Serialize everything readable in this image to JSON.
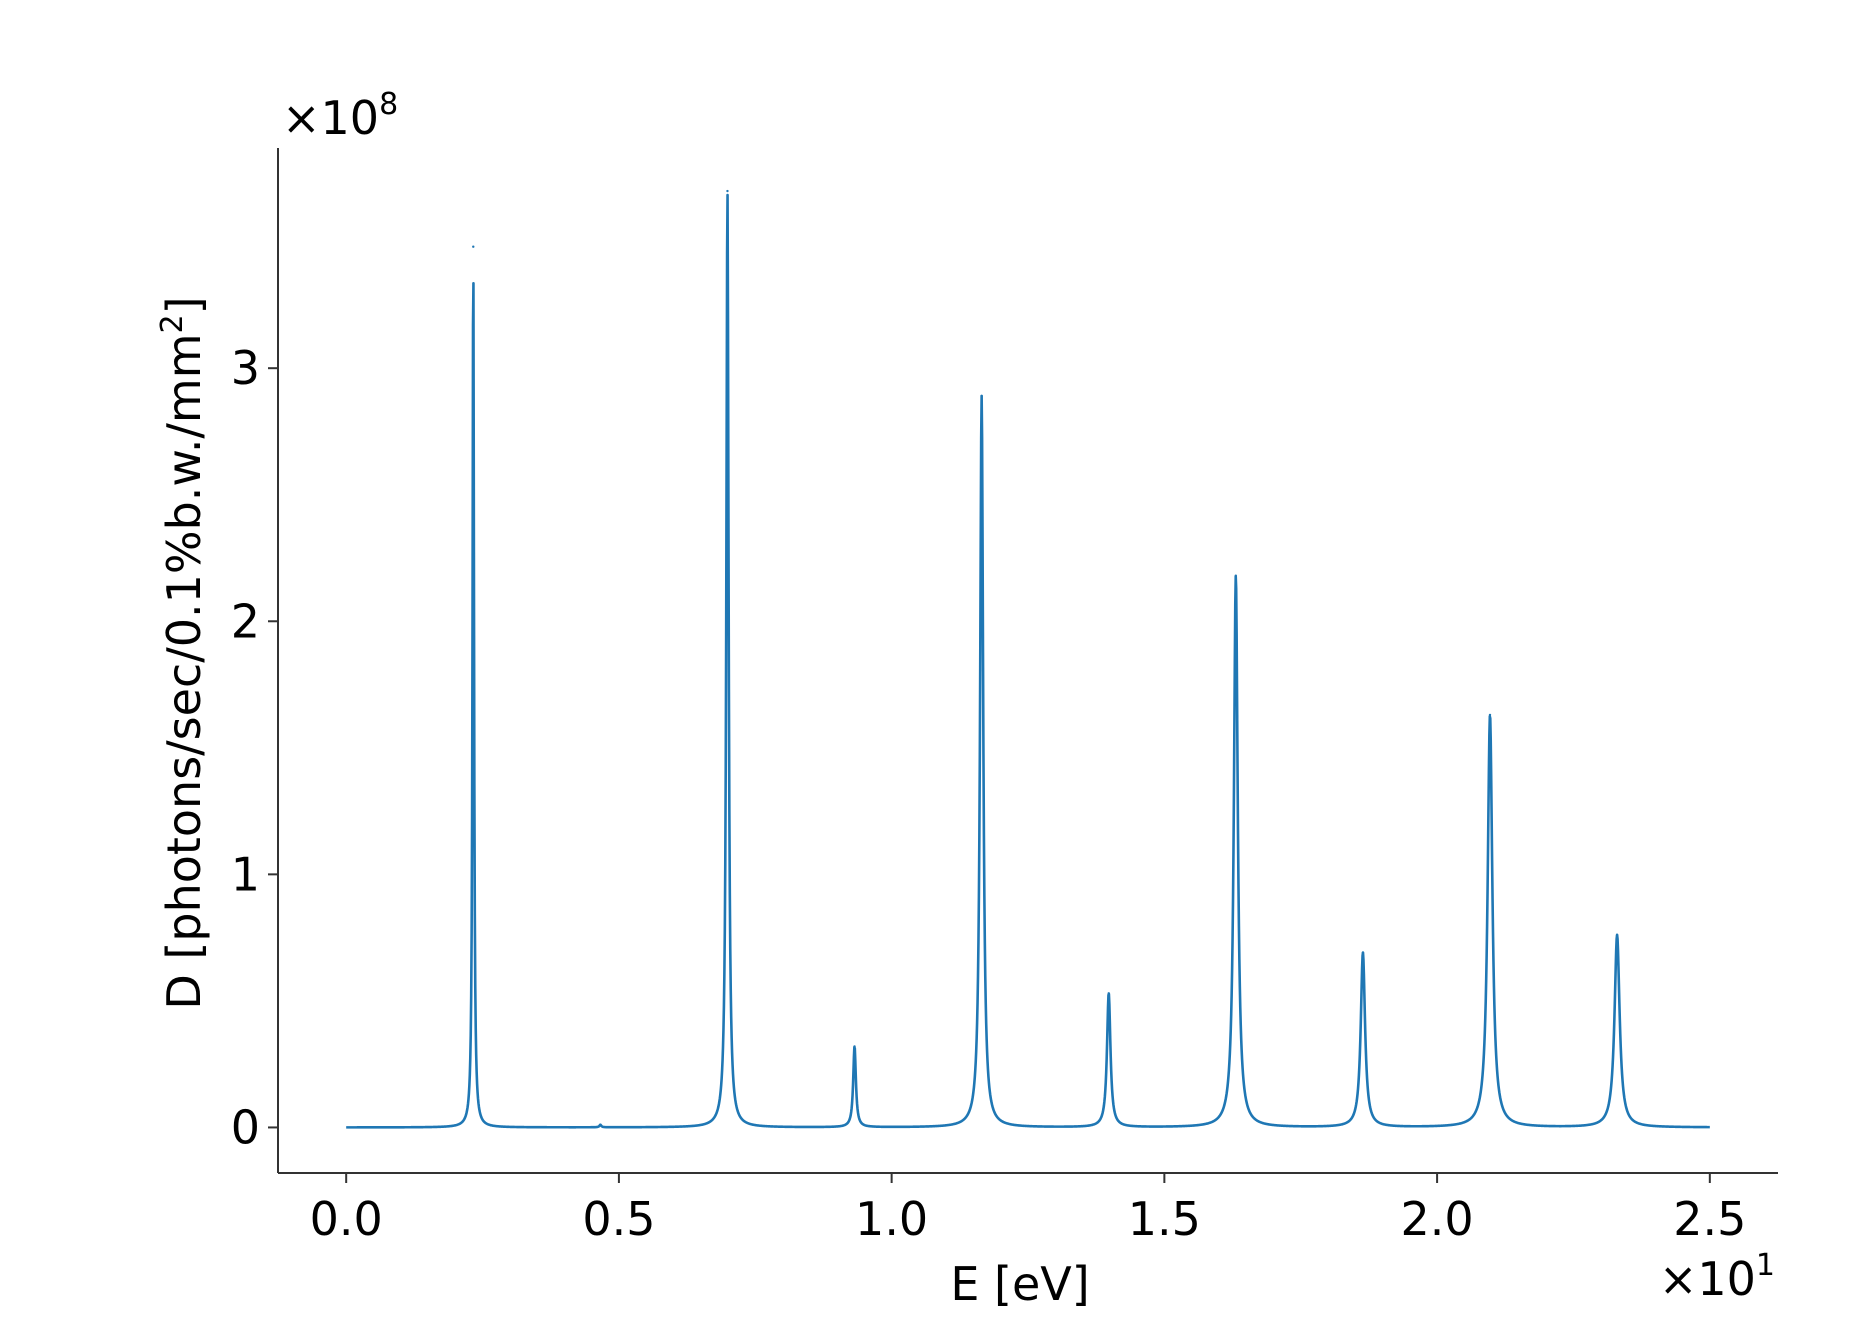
{
  "chart_data": {
    "type": "line",
    "title": "",
    "xlabel": "E [eV]",
    "ylabel_main": "D [photons/sec/0.1%b.w./mm",
    "ylabel_sup": "2",
    "ylabel_end": "]",
    "x_multiplier": {
      "base": "×10",
      "exp": "1"
    },
    "y_multiplier": {
      "base": "×10",
      "exp": "8"
    },
    "xlim": [
      -0.125,
      2.625
    ],
    "ylim": [
      -0.18,
      3.87
    ],
    "xticks": [
      0.0,
      0.5,
      1.0,
      1.5,
      2.0,
      2.5
    ],
    "xtick_labels": [
      "0.0",
      "0.5",
      "1.0",
      "1.5",
      "2.0",
      "2.5"
    ],
    "yticks": [
      0,
      1,
      2,
      3
    ],
    "ytick_labels": [
      "0",
      "1",
      "2",
      "3"
    ],
    "x_range": [
      0.0,
      2.5
    ],
    "grid": false,
    "line_color": "#1f77b4",
    "series": [
      {
        "peaks": [
          {
            "x": 0.233,
            "y": 3.48
          },
          {
            "x": 0.466,
            "y": 0.01
          },
          {
            "x": 0.699,
            "y": 3.7
          },
          {
            "x": 0.932,
            "y": 0.32
          },
          {
            "x": 1.165,
            "y": 2.89
          },
          {
            "x": 1.398,
            "y": 0.53
          },
          {
            "x": 1.631,
            "y": 2.18
          },
          {
            "x": 1.864,
            "y": 0.69
          },
          {
            "x": 2.097,
            "y": 1.63
          },
          {
            "x": 2.33,
            "y": 0.76
          }
        ]
      }
    ]
  }
}
